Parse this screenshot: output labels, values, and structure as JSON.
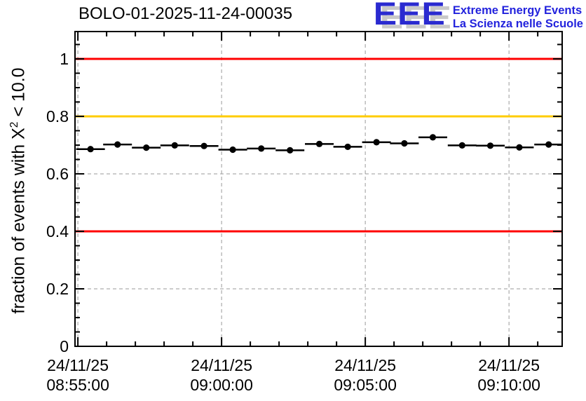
{
  "header": {
    "title": "BOLO-01-2025-11-24-00035",
    "logo": {
      "acronym": "EEE",
      "tagline_line1": "Extreme Energy Events",
      "tagline_line2": "La Scienza nelle Scuole",
      "acronym_color": "#2a2ad0",
      "tagline_color": "#2323dd",
      "shadow_color": "#c9c9c9"
    }
  },
  "chart_data": {
    "type": "scatter",
    "title": "BOLO-01-2025-11-24-00035",
    "xlabel": "",
    "ylabel": "fraction of events with X² < 10.0",
    "ylabel_parts": {
      "pre": "fraction of events with X",
      "sup": "2",
      "post": " < 10.0"
    },
    "ylim": [
      0,
      1.095
    ],
    "xlim_minutes": [
      -0.1,
      16.85
    ],
    "grid": true,
    "grid_color": "#9a9a9a",
    "frame_color": "#000000",
    "x_ticks": [
      {
        "minutes": 0,
        "date": "24/11/25",
        "time": "08:55:00"
      },
      {
        "minutes": 5,
        "date": "24/11/25",
        "time": "09:00:00"
      },
      {
        "minutes": 10,
        "date": "24/11/25",
        "time": "09:05:00"
      },
      {
        "minutes": 15,
        "date": "24/11/25",
        "time": "09:10:00"
      }
    ],
    "x_minor_step_minutes": 1,
    "y_ticks": [
      {
        "v": 0,
        "label": "0"
      },
      {
        "v": 0.2,
        "label": "0.2"
      },
      {
        "v": 0.4,
        "label": "0.4"
      },
      {
        "v": 0.6,
        "label": "0.6"
      },
      {
        "v": 0.8,
        "label": "0.8"
      },
      {
        "v": 1,
        "label": "1"
      }
    ],
    "y_minor_step": 0.05,
    "reference_lines": [
      {
        "value": 1.0,
        "color": "#ff0000"
      },
      {
        "value": 0.8,
        "color": "#ffcc00"
      },
      {
        "value": 0.4,
        "color": "#ff0000"
      }
    ],
    "series": [
      {
        "name": "fraction of events with chi-squared < 10.0",
        "marker": "filled-circle",
        "color": "#000000",
        "bin_halfwidth_minutes": 0.5,
        "points": [
          {
            "time": "08:55:26",
            "t": 0.44,
            "value": 0.686
          },
          {
            "time": "08:56:23",
            "t": 1.38,
            "value": 0.702
          },
          {
            "time": "08:57:23",
            "t": 2.38,
            "value": 0.691
          },
          {
            "time": "08:58:22",
            "t": 3.37,
            "value": 0.699
          },
          {
            "time": "08:59:24",
            "t": 4.39,
            "value": 0.697
          },
          {
            "time": "09:00:23",
            "t": 5.39,
            "value": 0.684
          },
          {
            "time": "09:01:23",
            "t": 6.38,
            "value": 0.688
          },
          {
            "time": "09:02:23",
            "t": 7.38,
            "value": 0.682
          },
          {
            "time": "09:03:24",
            "t": 8.4,
            "value": 0.704
          },
          {
            "time": "09:04:24",
            "t": 9.39,
            "value": 0.694
          },
          {
            "time": "09:05:23",
            "t": 10.39,
            "value": 0.71
          },
          {
            "time": "09:06:22",
            "t": 11.36,
            "value": 0.706
          },
          {
            "time": "09:07:21",
            "t": 12.35,
            "value": 0.727
          },
          {
            "time": "09:08:22",
            "t": 13.37,
            "value": 0.699
          },
          {
            "time": "09:09:21",
            "t": 14.35,
            "value": 0.698
          },
          {
            "time": "09:10:22",
            "t": 15.36,
            "value": 0.692
          },
          {
            "time": "09:11:23",
            "t": 16.38,
            "value": 0.702
          }
        ]
      }
    ]
  }
}
